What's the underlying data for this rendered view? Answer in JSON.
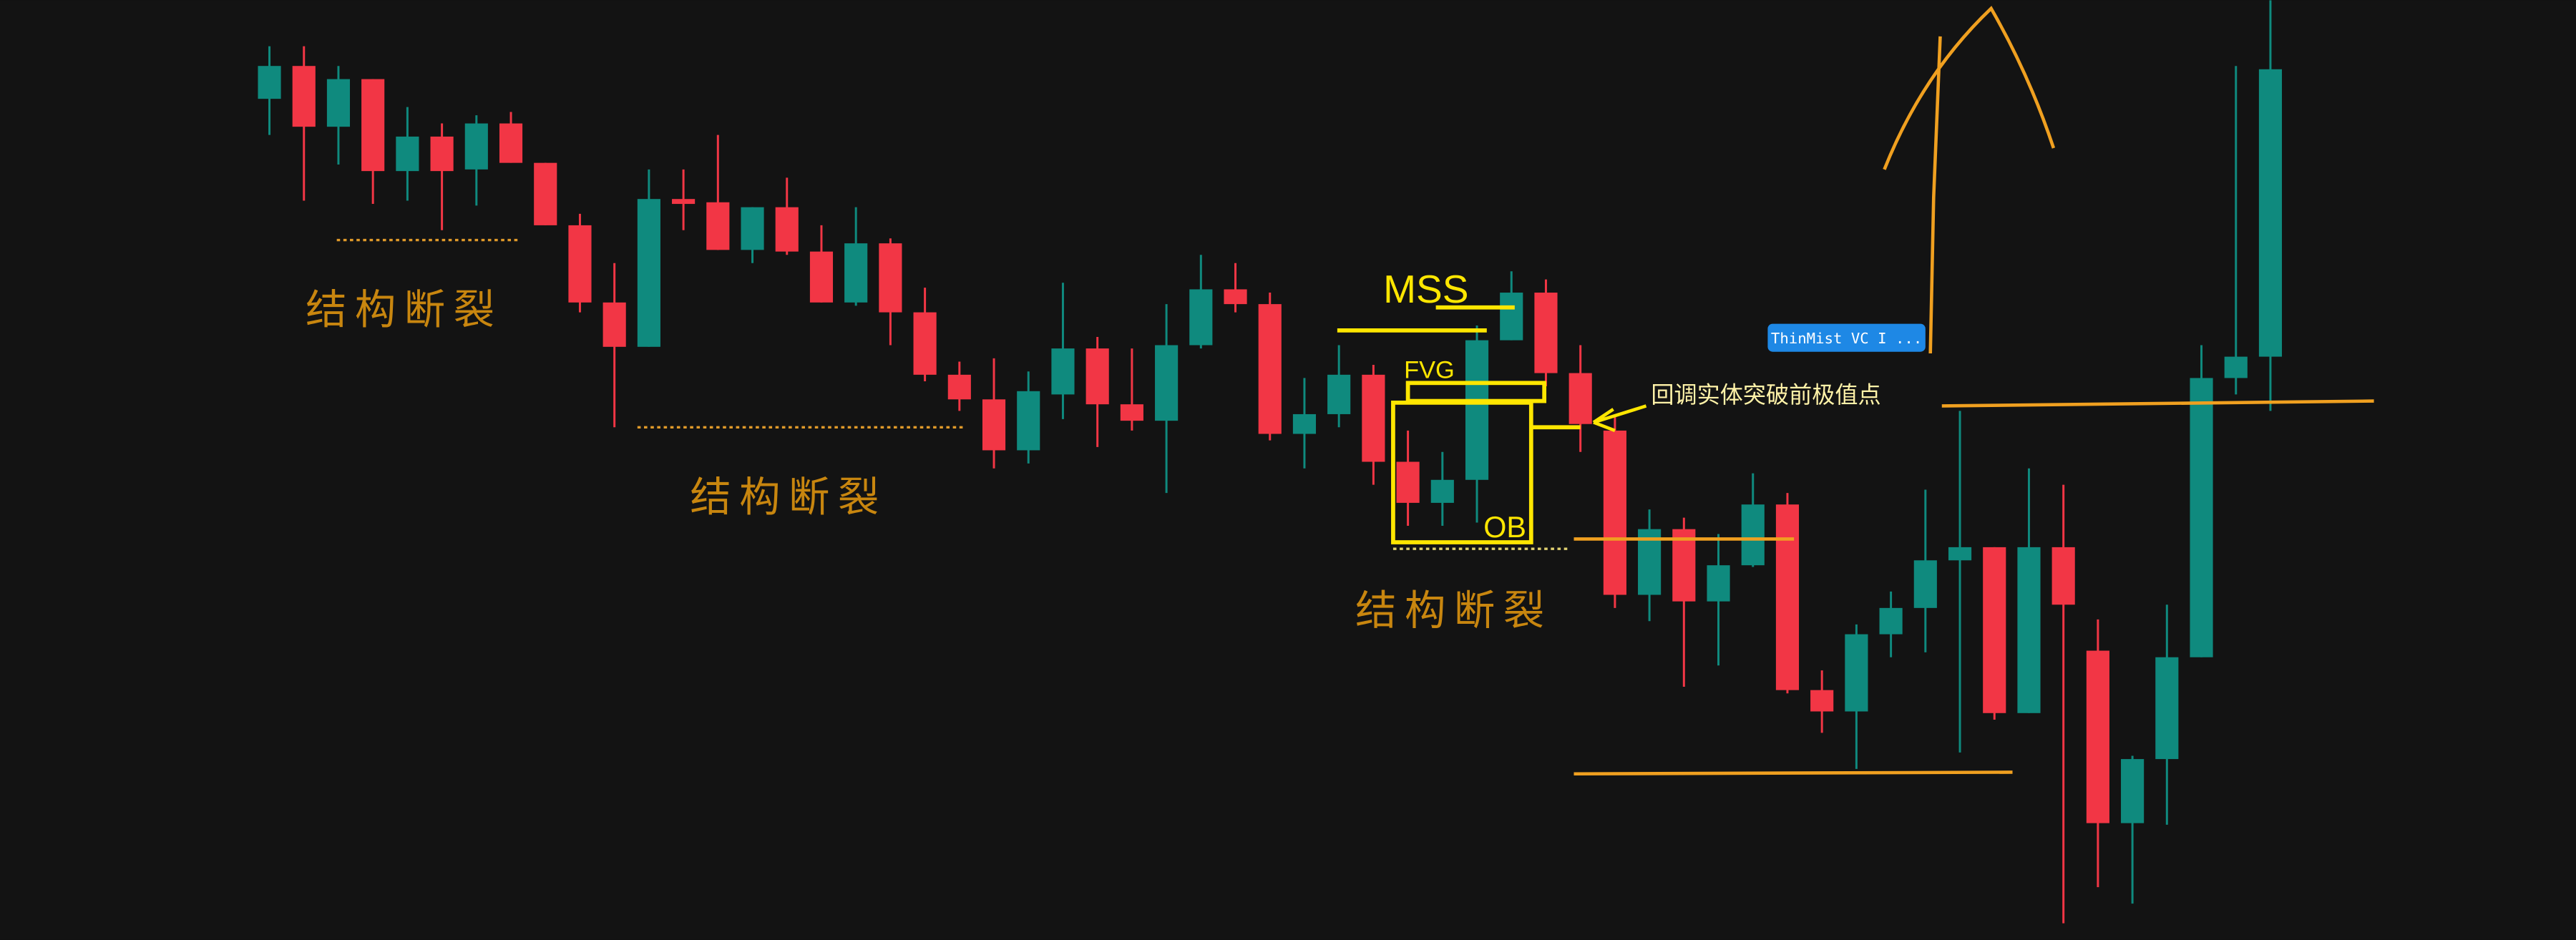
{
  "chart_data": {
    "type": "candlestick",
    "open": [
      512,
      532,
      495,
      524,
      468,
      489,
      469,
      497,
      473,
      435,
      388,
      361,
      451,
      449,
      420,
      446,
      419,
      388,
      424,
      382,
      344,
      329,
      298,
      332,
      360,
      326,
      316,
      362,
      396,
      387,
      308,
      320,
      344,
      291,
      266,
      280,
      365,
      394,
      345,
      310,
      210,
      250,
      206,
      228,
      265,
      152,
      139,
      186,
      202,
      231,
      239,
      138,
      239,
      176,
      71,
      110,
      172,
      342,
      355
    ],
    "high": [
      544,
      544,
      532,
      524,
      507,
      497,
      502,
      504,
      473,
      442,
      412,
      469,
      469,
      490,
      446,
      464,
      435,
      446,
      427,
      397,
      352,
      354,
      346,
      400,
      367,
      360,
      387,
      417,
      412,
      394,
      342,
      362,
      350,
      310,
      297,
      374,
      407,
      402,
      362,
      320,
      262,
      257,
      247,
      284,
      272,
      164,
      192,
      212,
      274,
      322,
      239,
      287,
      277,
      195,
      112,
      204,
      362,
      532,
      572
    ],
    "low": [
      490,
      450,
      472,
      448,
      450,
      432,
      447,
      473,
      435,
      382,
      312,
      361,
      432,
      420,
      412,
      417,
      388,
      386,
      362,
      340,
      322,
      287,
      290,
      317,
      300,
      310,
      272,
      360,
      382,
      304,
      287,
      312,
      277,
      252,
      252,
      254,
      365,
      337,
      297,
      202,
      194,
      154,
      167,
      227,
      150,
      126,
      104,
      172,
      175,
      114,
      134,
      138,
      10,
      32,
      22,
      70,
      172,
      332,
      322
    ],
    "close": [
      532,
      495,
      524,
      468,
      489,
      468,
      497,
      473,
      435,
      388,
      361,
      451,
      448,
      420,
      446,
      419,
      388,
      424,
      382,
      344,
      329,
      298,
      334,
      360,
      326,
      316,
      362,
      396,
      387,
      308,
      320,
      344,
      291,
      266,
      280,
      365,
      394,
      345,
      314,
      210,
      250,
      206,
      228,
      265,
      152,
      139,
      186,
      202,
      231,
      239,
      138,
      239,
      204,
      71,
      110,
      172,
      342,
      355,
      530
    ],
    "up_color": "#0f8a7e",
    "down_color": "#f23645",
    "ylim": [
      0,
      572
    ]
  },
  "annotations": {
    "break_1": "结构断裂",
    "break_2": "结构断裂",
    "break_3": "结构断裂",
    "mss": "MSS",
    "fvg": "FVG",
    "ob": "OB",
    "note": "回调实体突破前极值点",
    "badge": "ThinMist VC I ..."
  }
}
